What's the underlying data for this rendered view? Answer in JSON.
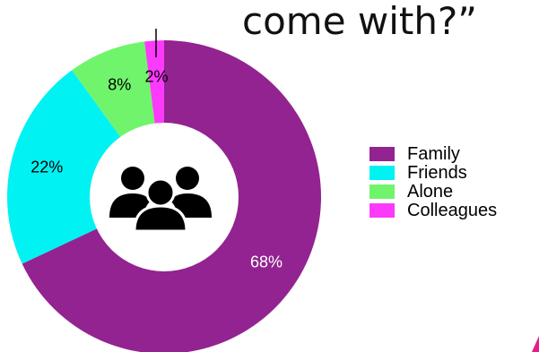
{
  "title": {
    "line2": "come with?”"
  },
  "colors": {
    "family": "#922391",
    "friends": "#00f2f2",
    "alone": "#70f46c",
    "colleagues": "#fb3afb",
    "accent": "#e0208a"
  },
  "center_icon": "group-of-people-icon",
  "chart_data": {
    "type": "pie",
    "style": "donut",
    "categories": [
      "Family",
      "Friends",
      "Alone",
      "Colleagues"
    ],
    "values": [
      68,
      22,
      8,
      2
    ],
    "data_labels": [
      "68%",
      "22%",
      "8%",
      "2%"
    ],
    "title": "",
    "legend_placement": "right"
  }
}
